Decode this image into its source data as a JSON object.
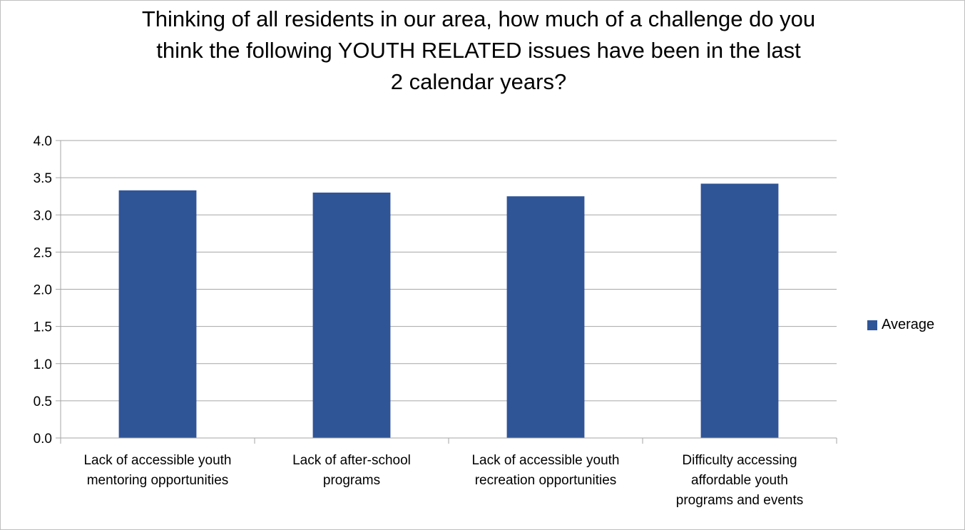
{
  "chart_data": {
    "type": "bar",
    "title_lines": [
      "Thinking of all residents in our area, how much of a challenge do you",
      "think the following YOUTH RELATED issues have been in the last",
      "2 calendar years?"
    ],
    "categories": [
      [
        "Lack of accessible youth",
        "mentoring opportunities"
      ],
      [
        "Lack of after-school",
        "programs"
      ],
      [
        "Lack of accessible youth",
        "recreation opportunities"
      ],
      [
        "Difficulty accessing",
        "affordable youth",
        "programs and events"
      ]
    ],
    "series": [
      {
        "name": "Average",
        "values": [
          3.33,
          3.3,
          3.25,
          3.42
        ],
        "color": "#2F5597"
      }
    ],
    "ylim": [
      0,
      4.0
    ],
    "yticks": [
      "0.0",
      "0.5",
      "1.0",
      "1.5",
      "2.0",
      "2.5",
      "3.0",
      "3.5",
      "4.0"
    ],
    "grid": true,
    "legend_position": "right",
    "gridline_color": "#a6a6a6"
  }
}
